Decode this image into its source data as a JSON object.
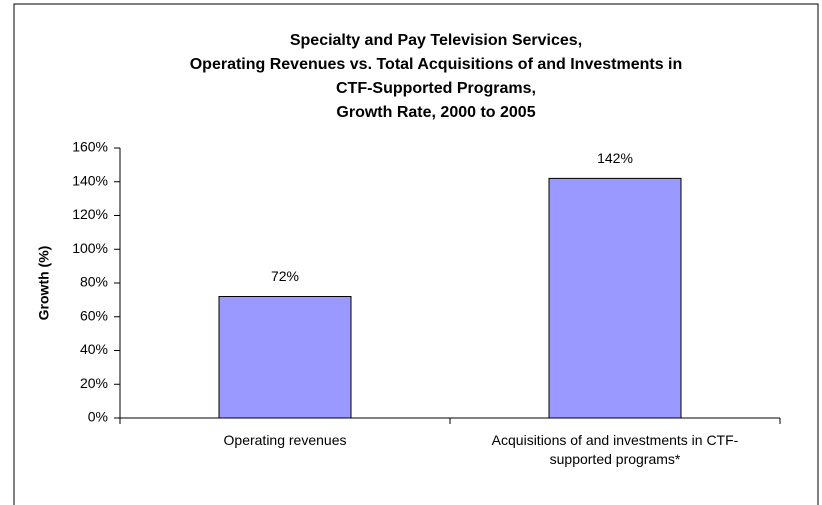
{
  "chart_data": {
    "type": "bar",
    "title": [
      "Specialty and Pay Television Services,",
      "Operating Revenues vs. Total Acquisitions of and Investments in",
      "CTF-Supported Programs,",
      "Growth Rate, 2000 to 2005"
    ],
    "y_label": "Growth (%)",
    "categories": [
      "Operating revenues",
      "Acquisitions of and investments in CTF-supported programs*"
    ],
    "values": [
      72,
      142
    ],
    "value_labels": [
      "72%",
      "142%"
    ],
    "color": "#9999ff",
    "ylim": [
      0,
      160
    ],
    "yticks": [
      {
        "value": 0,
        "label": "0%"
      },
      {
        "value": 20,
        "label": "20%"
      },
      {
        "value": 40,
        "label": "40%"
      },
      {
        "value": 60,
        "label": "60%"
      },
      {
        "value": 80,
        "label": "80%"
      },
      {
        "value": 100,
        "label": "100%"
      },
      {
        "value": 120,
        "label": "120%"
      },
      {
        "value": 140,
        "label": "140%"
      },
      {
        "value": 160,
        "label": "160%"
      }
    ],
    "grid": false
  }
}
